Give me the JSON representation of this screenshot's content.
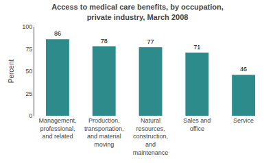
{
  "chart_data": {
    "type": "bar",
    "title": "Access to medical care benefits, by occupation,\nprivate industry, March 2008",
    "categories": [
      "Management,\nprofessional,\nand related",
      "Production,\ntransportation,\nand material\nmoving",
      "Natural\nresources,\nconstruction,\nand\nmaintenance",
      "Sales and\noffice",
      "Service"
    ],
    "values": [
      86,
      78,
      77,
      71,
      46
    ],
    "color": "#2E8B8B",
    "ylabel": "Percent",
    "ylim": [
      0,
      100
    ],
    "yticks": [
      0,
      25,
      50,
      75,
      100
    ],
    "data_labels": true,
    "grid": false
  }
}
